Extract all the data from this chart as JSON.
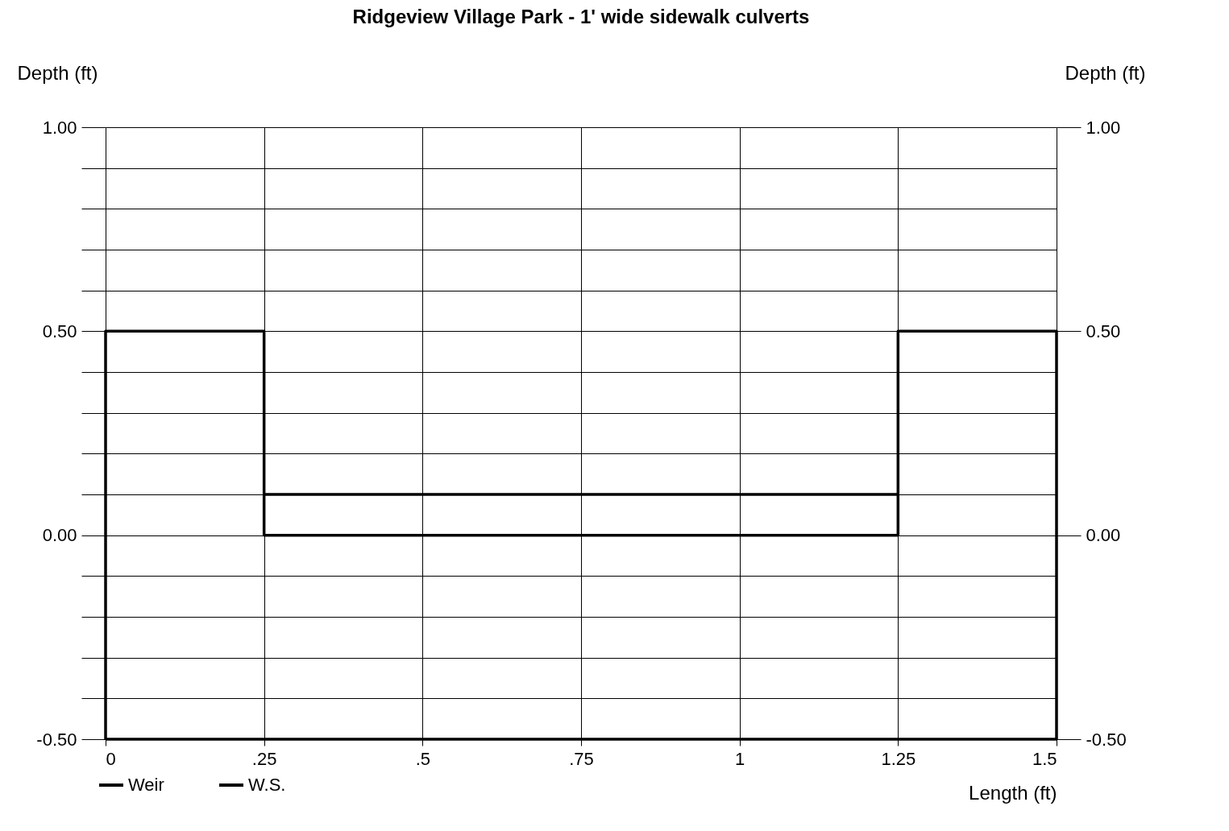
{
  "chart_data": {
    "type": "line",
    "title": "Ridgeview Village Park - 1' wide sidewalk culverts",
    "xlabel": "Length (ft)",
    "ylabel": "Depth (ft)",
    "y2label": "Depth (ft)",
    "series": [
      {
        "name": "Weir",
        "color": "#000000",
        "x": [
          0,
          0,
          0.25,
          0.25,
          1.25,
          1.25,
          1.5,
          1.5
        ],
        "values": [
          -0.5,
          0.5,
          0.5,
          0,
          0,
          0.5,
          0.5,
          -0.5
        ]
      },
      {
        "name": "W.S.",
        "color": "#000000",
        "x": [
          0.25,
          1.25
        ],
        "values": [
          0.1,
          0.1
        ]
      }
    ],
    "xlim": [
      0,
      1.5
    ],
    "xticks": [
      0,
      {
        "value": 0.25,
        "label": ".25"
      },
      {
        "value": 0.5,
        "label": ".5"
      },
      {
        "value": 0.75,
        "label": ".75"
      },
      1,
      1.25,
      1.5
    ],
    "ylim": [
      -0.5,
      1.0
    ],
    "yticks": [
      {
        "value": -0.5,
        "label": "-0.50"
      },
      {
        "value": -0.4,
        "label": null
      },
      {
        "value": -0.3,
        "label": null
      },
      {
        "value": -0.2,
        "label": null
      },
      {
        "value": -0.1,
        "label": null
      },
      {
        "value": 0,
        "label": "0.00"
      },
      {
        "value": 0.1,
        "label": null
      },
      {
        "value": 0.2,
        "label": null
      },
      {
        "value": 0.3,
        "label": null
      },
      {
        "value": 0.4,
        "label": null
      },
      {
        "value": 0.5,
        "label": "0.50"
      },
      {
        "value": 0.6,
        "label": null
      },
      {
        "value": 0.7,
        "label": null
      },
      {
        "value": 0.8,
        "label": null
      },
      {
        "value": 0.9,
        "label": null
      },
      {
        "value": 1.0,
        "label": "1.00"
      }
    ],
    "y2lim": [
      -0.5,
      1.0
    ],
    "y2ticks": [
      {
        "value": -0.5,
        "label": "-0.50"
      },
      {
        "value": 0,
        "label": "0.00"
      },
      {
        "value": 0.5,
        "label": "0.50"
      },
      {
        "value": 1.0,
        "label": "1.00"
      }
    ],
    "ref_lines": [
      {
        "axis": "y",
        "value": -0.5,
        "color": "#000000"
      }
    ],
    "grid": true,
    "legend": "bottom left",
    "marker": "none",
    "line_style": "solid"
  }
}
